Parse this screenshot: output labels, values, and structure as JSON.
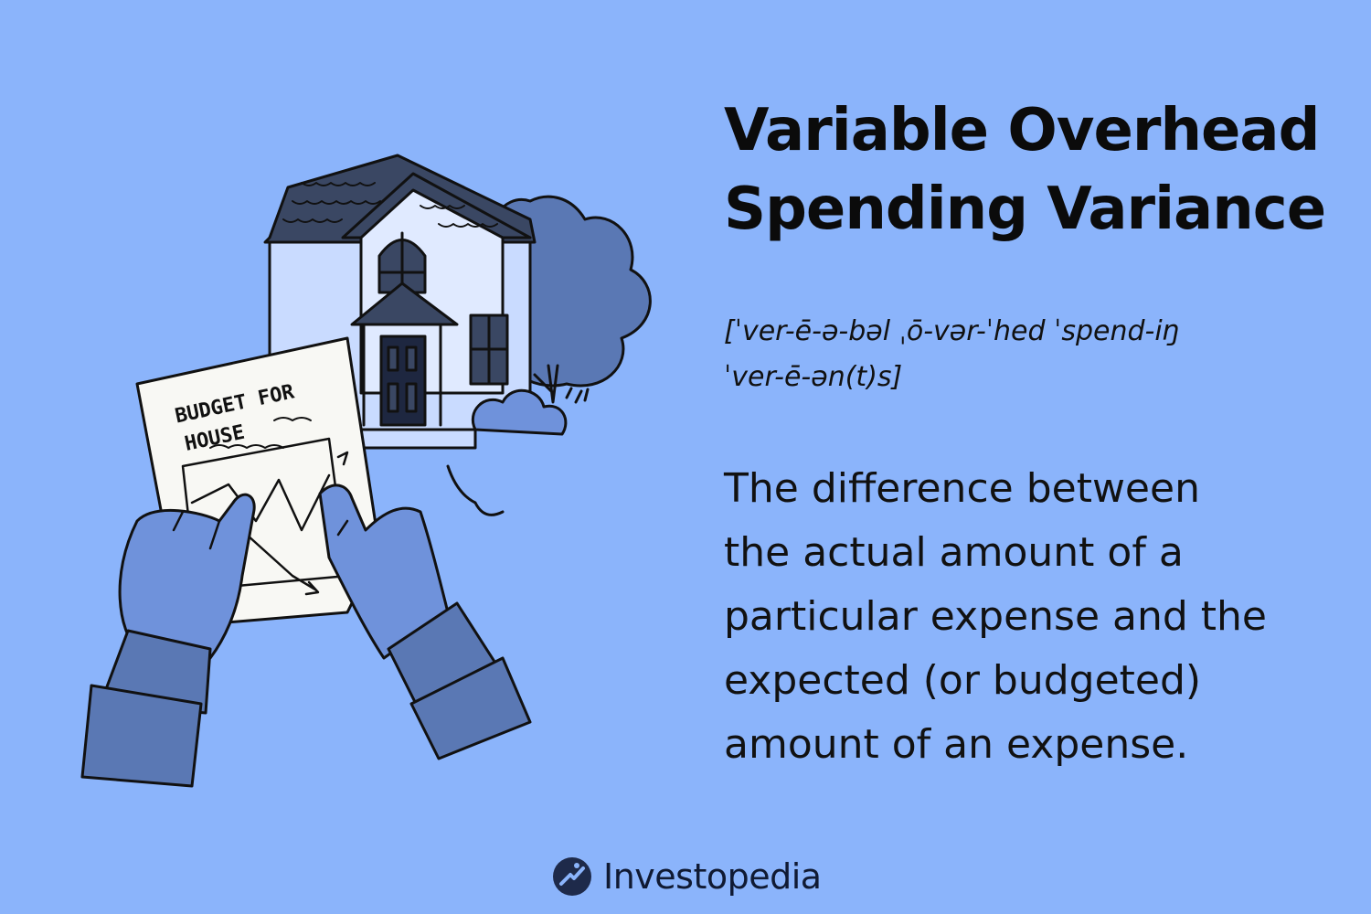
{
  "title": {
    "line1": "Variable Overhead",
    "line2": "Spending Variance"
  },
  "pronunciation": {
    "line1": "[ˈver-ē-ə-bəl ˌō-vər-ˈhed ˈspend-iŋ",
    "line2": "ˈver-ē-ən(t)s]"
  },
  "definition": {
    "line1": "The difference between",
    "line2": "the actual amount of a",
    "line3": "particular expense and the",
    "line4": "expected (or budgeted)",
    "line5": "amount of an expense."
  },
  "illustration": {
    "paper_line1": "BUDGET FOR",
    "paper_line2": "HOUSE"
  },
  "brand": {
    "name": "Investopedia",
    "icon": "investopedia-logo-icon"
  },
  "colors": {
    "background": "#8bb4fb",
    "text": "#111111",
    "roof": "#3a4763",
    "house": "#c9dbff",
    "tree": "#5a78b4",
    "hand": "#6f92db",
    "sleeve": "#5a78b4"
  }
}
